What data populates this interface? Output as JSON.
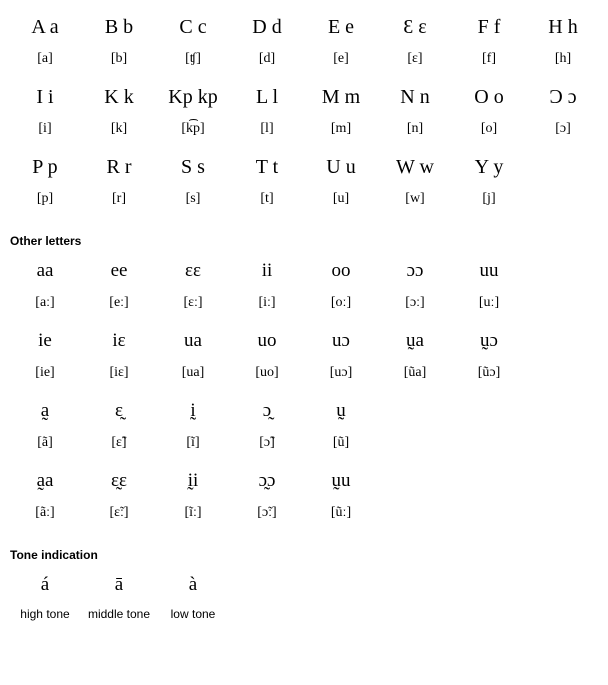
{
  "alphabet": {
    "rows": [
      {
        "letters": [
          "A a",
          "B b",
          "C c",
          "D d",
          "E e",
          "Ɛ ɛ",
          "F f",
          "H h"
        ],
        "ipa": [
          "[a]",
          "[b]",
          "[ʧ]",
          "[d]",
          "[e]",
          "[ɛ]",
          "[f]",
          "[h]"
        ]
      },
      {
        "letters": [
          "I i",
          "K k",
          "Kp kp",
          "L l",
          "M m",
          "N n",
          "O o",
          "Ɔ ɔ"
        ],
        "ipa": [
          "[i]",
          "[k]",
          "[k͡p]",
          "[l]",
          "[m]",
          "[n]",
          "[o]",
          "[ɔ]"
        ]
      },
      {
        "letters": [
          "P p",
          "R r",
          "S s",
          "T t",
          "U u",
          "W w",
          "Y y",
          ""
        ],
        "ipa": [
          "[p]",
          "[r]",
          "[s]",
          "[t]",
          "[u]",
          "[w]",
          "[j]",
          ""
        ]
      }
    ]
  },
  "other": {
    "title": "Other letters",
    "rows": [
      {
        "letters": [
          "aa",
          "ee",
          "ɛɛ",
          "ii",
          "oo",
          "ɔɔ",
          "uu",
          ""
        ],
        "ipa": [
          "[aː]",
          "[eː]",
          "[ɛː]",
          "[iː]",
          "[oː]",
          "[ɔː]",
          "[uː]",
          ""
        ]
      },
      {
        "letters": [
          "ie",
          "iɛ",
          "ua",
          "uo",
          "uɔ",
          "ṵa",
          "ṵɔ",
          ""
        ],
        "ipa": [
          "[ie]",
          "[iɛ]",
          "[ua]",
          "[uo]",
          "[uɔ]",
          "[ũa]",
          "[ũɔ]",
          ""
        ]
      },
      {
        "letters": [
          "a̰",
          "ɛ̰",
          "ḭ",
          "ɔ̰",
          "ṵ",
          "",
          "",
          ""
        ],
        "ipa": [
          "[ã]",
          "[ɛ̃]",
          "[ĩ]",
          "[ɔ̃]",
          "[ũ]",
          "",
          "",
          ""
        ]
      },
      {
        "letters": [
          "a̰a",
          "ɛ̰ɛ",
          "ḭi",
          "ɔ̰ɔ",
          "ṵu",
          "",
          "",
          ""
        ],
        "ipa": [
          "[ãː]",
          "[ɛ̃ː]",
          "[ĩː]",
          "[ɔ̃ː]",
          "[ũː]",
          "",
          "",
          ""
        ]
      }
    ]
  },
  "tone": {
    "title": "Tone indication",
    "letters": [
      "á",
      "ā",
      "à",
      "",
      "",
      "",
      "",
      ""
    ],
    "labels": [
      "high tone",
      "middle tone",
      "low tone",
      "",
      "",
      "",
      "",
      ""
    ]
  }
}
